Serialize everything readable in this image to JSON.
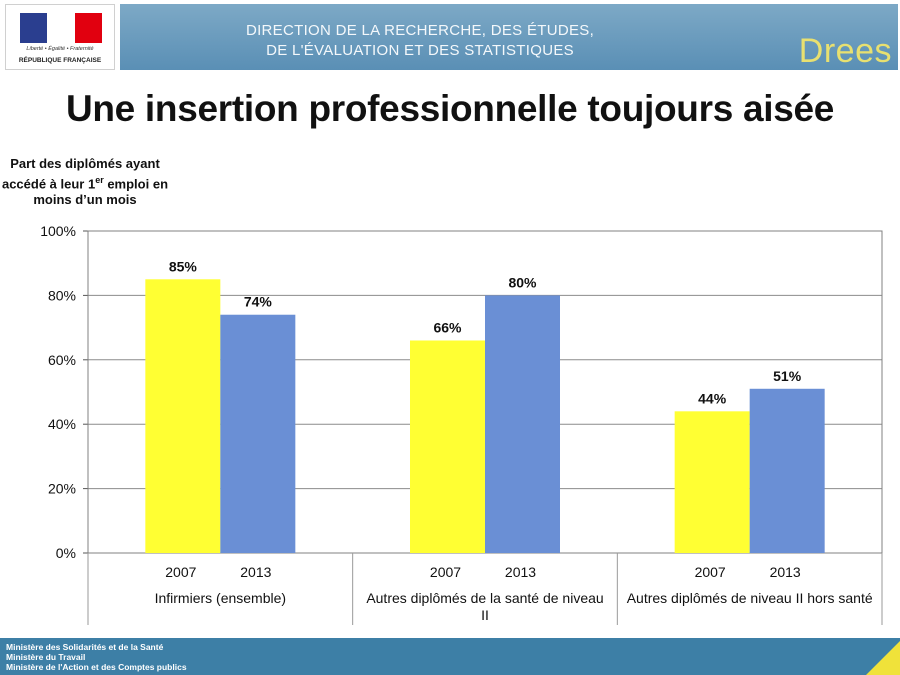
{
  "header": {
    "ministry_motto": "Liberté • Égalité • Fraternité",
    "republic": "RÉPUBLIQUE FRANÇAISE",
    "direction_line1": "DIRECTION DE LA RECHERCHE, DES ÉTUDES,",
    "direction_line2": "DE L'ÉVALUATION ET DES STATISTIQUES",
    "logo_text": "Drees"
  },
  "title": "Une insertion professionnelle toujours aisée",
  "ytitle": {
    "text_before_sup": "Part des diplômés ayant accédé à leur 1",
    "sup": "er",
    "text_after_sup": " emploi en moins d’un mois"
  },
  "footer": {
    "line1": "Ministère des Solidarités et de la Santé",
    "line2": "Ministère du Travail",
    "line3": "Ministère de l'Action et des Comptes publics"
  },
  "chart_data": {
    "type": "bar",
    "title": "Une insertion professionnelle toujours aisée",
    "ylabel": "Part des diplômés ayant accédé à leur 1er emploi en moins d’un mois",
    "xlabel": "",
    "ylim": [
      0,
      100
    ],
    "yticks": [
      "0%",
      "20%",
      "40%",
      "60%",
      "80%",
      "100%"
    ],
    "grid": true,
    "categories": [
      "Infirmiers (ensemble)",
      "Autres diplômés de la santé de niveau II",
      "Autres diplômés de niveau II hors santé"
    ],
    "series": [
      {
        "name": "2007",
        "color": "#ffff33",
        "values": [
          85,
          66,
          44
        ],
        "labels": [
          "85%",
          "66%",
          "44%"
        ]
      },
      {
        "name": "2013",
        "color": "#6a8fd5",
        "values": [
          74,
          80,
          51
        ],
        "labels": [
          "74%",
          "80%",
          "51%"
        ]
      }
    ]
  }
}
